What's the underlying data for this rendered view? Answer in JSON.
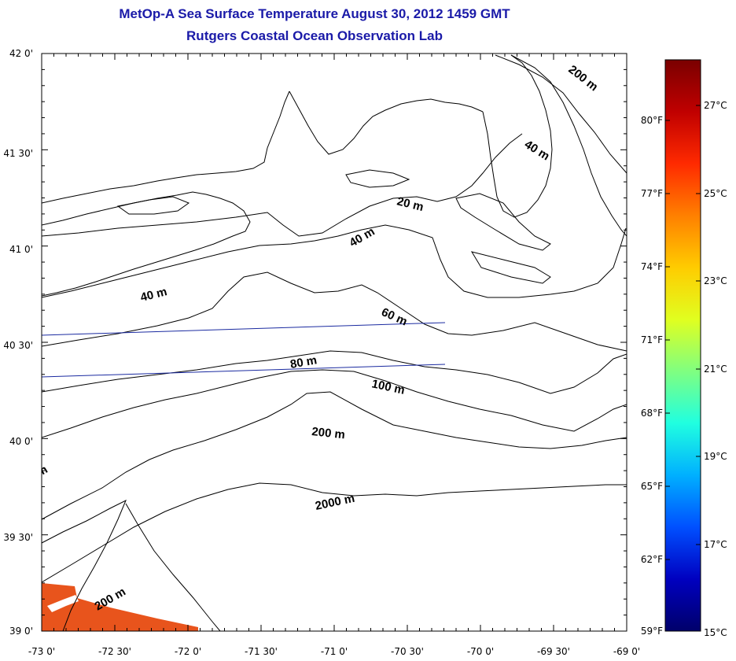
{
  "header": {
    "title": "MetOp-A Sea Surface Temperature August 30, 2012 1459 GMT",
    "subtitle": "Rutgers Coastal Ocean Observation Lab"
  },
  "map": {
    "lon_range": [
      -73,
      -69
    ],
    "lat_range": [
      39,
      42
    ],
    "lon_ticks": [
      "-73 0'",
      "-72 30'",
      "-72 0'",
      "-71 30'",
      "-71 0'",
      "-70 30'",
      "-70 0'",
      "-69 30'",
      "-69 0'"
    ],
    "lat_ticks": [
      "39 0'",
      "39 30'",
      "40 0'",
      "40 30'",
      "41 0'",
      "41 30'",
      "42 0'"
    ],
    "contour_labels": [
      {
        "text": "20 m",
        "name": "contour-label-20m-a"
      },
      {
        "text": "40 m",
        "name": "contour-label-40m-a"
      },
      {
        "text": "40 m",
        "name": "contour-label-40m-b"
      },
      {
        "text": "40 m",
        "name": "contour-label-40m-c"
      },
      {
        "text": "60 m",
        "name": "contour-label-60m"
      },
      {
        "text": "80 m",
        "name": "contour-label-80m"
      },
      {
        "text": "100 m",
        "name": "contour-label-100m"
      },
      {
        "text": "200 m",
        "name": "contour-label-200m-a"
      },
      {
        "text": "200 m",
        "name": "contour-label-200m-b"
      },
      {
        "text": "200 m",
        "name": "contour-label-200m-c"
      },
      {
        "text": "2000 m",
        "name": "contour-label-2000m"
      },
      {
        "text": "m",
        "name": "contour-label-partial"
      }
    ],
    "sst_patch_color": "#e8541c",
    "transect_color": "#1a2aa0"
  },
  "colorbar": {
    "celsius_labels": [
      "27°C",
      "25°C",
      "23°C",
      "21°C",
      "19°C",
      "17°C",
      "15°C"
    ],
    "fahrenheit_labels": [
      "80°F",
      "77°F",
      "74°F",
      "71°F",
      "68°F",
      "65°F",
      "62°F",
      "59°F"
    ],
    "colors": [
      "#7a0000",
      "#c00000",
      "#ff2a00",
      "#ff8000",
      "#ffcc00",
      "#e0ff20",
      "#80ff80",
      "#20ffe0",
      "#00b0ff",
      "#0050ff",
      "#0000c0",
      "#00006a"
    ]
  }
}
